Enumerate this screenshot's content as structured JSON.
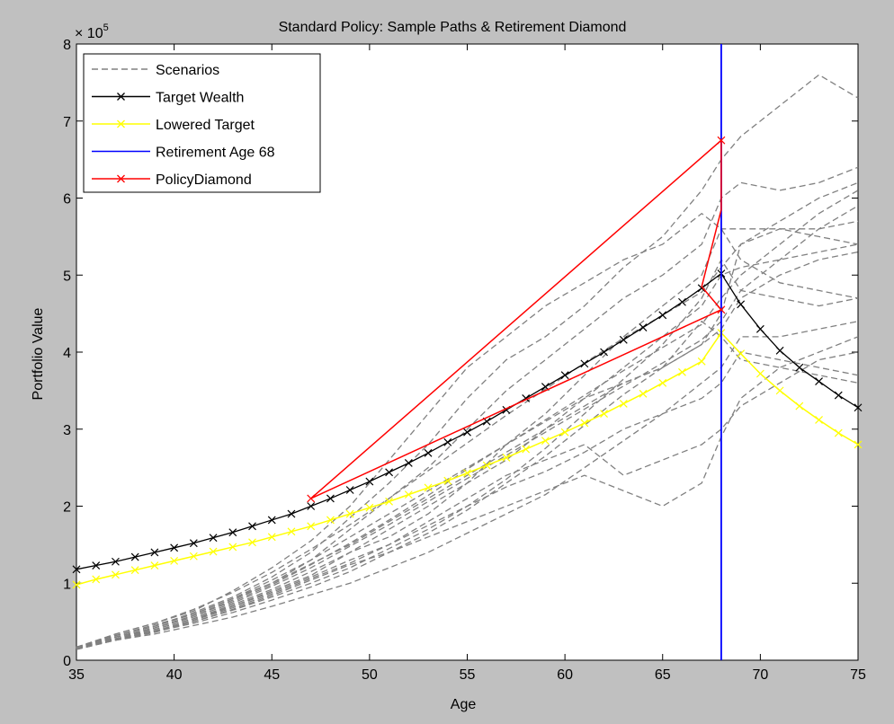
{
  "chart_data": {
    "type": "line",
    "title": "Standard Policy: Sample Paths & Retirement Diamond",
    "xlabel": "Age",
    "ylabel": "Portfolio Value",
    "exponent_label": "× 10",
    "exponent_power": "5",
    "xlim": [
      35,
      75
    ],
    "ylim": [
      0,
      800000
    ],
    "xticks": [
      "35",
      "40",
      "45",
      "50",
      "55",
      "60",
      "65",
      "70",
      "75"
    ],
    "xtick_values": [
      35,
      40,
      45,
      50,
      55,
      60,
      65,
      70,
      75
    ],
    "yticks": [
      "0",
      "1",
      "2",
      "3",
      "4",
      "5",
      "6",
      "7",
      "8"
    ],
    "ytick_values": [
      0,
      100000,
      200000,
      300000,
      400000,
      500000,
      600000,
      700000,
      800000
    ],
    "grid": false,
    "legend_position": "top-left",
    "background_color": "#c0c0c0",
    "plot_area_color": "#ffffff",
    "legend": [
      "Scenarios",
      "Target Wealth",
      "Lowered Target",
      "Retirement Age 68",
      "PolicyDiamond"
    ],
    "colors": {
      "scenarios": "#808080",
      "target": "#000000",
      "lowered": "#ffff00",
      "retirement": "#0000ff",
      "diamond": "#ff0000"
    },
    "retirement_age": 68,
    "target_wealth": {
      "x": [
        35,
        36,
        37,
        38,
        39,
        40,
        41,
        42,
        43,
        44,
        45,
        46,
        47,
        48,
        49,
        50,
        51,
        52,
        53,
        54,
        55,
        56,
        57,
        58,
        59,
        60,
        61,
        62,
        63,
        64,
        65,
        66,
        67,
        68,
        69,
        70,
        71,
        72,
        73,
        74,
        75
      ],
      "y": [
        118000,
        123000,
        128000,
        134000,
        140000,
        146000,
        152000,
        159000,
        166000,
        174000,
        182000,
        190000,
        200000,
        210000,
        221000,
        232000,
        244000,
        256000,
        269000,
        283000,
        296000,
        310000,
        325000,
        340000,
        355000,
        370000,
        385000,
        400000,
        416000,
        432000,
        448000,
        465000,
        483000,
        502000,
        462000,
        430000,
        402000,
        380000,
        362000,
        344000,
        328000
      ]
    },
    "lowered_target": {
      "x": [
        35,
        36,
        37,
        38,
        39,
        40,
        41,
        42,
        43,
        44,
        45,
        46,
        47,
        48,
        49,
        50,
        51,
        52,
        53,
        54,
        55,
        56,
        57,
        58,
        59,
        60,
        61,
        62,
        63,
        64,
        65,
        66,
        67,
        68,
        69,
        70,
        71,
        72,
        73,
        74,
        75
      ],
      "y": [
        98000,
        105000,
        111000,
        117000,
        123000,
        129000,
        135000,
        141000,
        147000,
        153000,
        160000,
        167000,
        174000,
        182000,
        190000,
        198000,
        206000,
        215000,
        224000,
        233000,
        243000,
        253000,
        263000,
        274000,
        285000,
        296000,
        308000,
        320000,
        333000,
        346000,
        360000,
        374000,
        388000,
        425000,
        398000,
        372000,
        350000,
        330000,
        312000,
        295000,
        280000
      ]
    },
    "policy_diamond": {
      "x": [
        47,
        68,
        68,
        67,
        68,
        47
      ],
      "y": [
        210000,
        675000,
        585000,
        485000,
        455000,
        210000
      ]
    },
    "scenarios_x": [
      35,
      37,
      39,
      41,
      43,
      45,
      47,
      49,
      51,
      53,
      55,
      57,
      59,
      61,
      63,
      65,
      67,
      68,
      69,
      71,
      73,
      75
    ],
    "scenarios": [
      [
        16000,
        28000,
        38000,
        52000,
        70000,
        90000,
        110000,
        140000,
        160000,
        190000,
        230000,
        280000,
        320000,
        370000,
        420000,
        460000,
        500000,
        560000,
        560000,
        560000,
        560000,
        570000
      ],
      [
        16000,
        26000,
        36000,
        50000,
        65000,
        82000,
        100000,
        120000,
        145000,
        170000,
        200000,
        235000,
        275000,
        320000,
        365000,
        410000,
        470000,
        520000,
        480000,
        470000,
        460000,
        470000
      ],
      [
        15000,
        30000,
        42000,
        58000,
        78000,
        100000,
        130000,
        170000,
        210000,
        250000,
        300000,
        350000,
        390000,
        430000,
        470000,
        500000,
        540000,
        600000,
        620000,
        610000,
        620000,
        640000
      ],
      [
        17000,
        32000,
        44000,
        62000,
        82000,
        108000,
        140000,
        185000,
        230000,
        280000,
        340000,
        390000,
        420000,
        460000,
        510000,
        550000,
        610000,
        650000,
        680000,
        720000,
        760000,
        730000
      ],
      [
        15000,
        27000,
        37000,
        48000,
        62000,
        78000,
        95000,
        115000,
        140000,
        165000,
        195000,
        230000,
        265000,
        305000,
        345000,
        380000,
        410000,
        450000,
        540000,
        560000,
        550000,
        540000
      ],
      [
        16000,
        34000,
        48000,
        64000,
        90000,
        120000,
        155000,
        200000,
        260000,
        320000,
        380000,
        420000,
        460000,
        490000,
        520000,
        540000,
        580000,
        560000,
        520000,
        490000,
        480000,
        470000
      ],
      [
        14000,
        26000,
        34000,
        45000,
        56000,
        70000,
        85000,
        100000,
        120000,
        140000,
        165000,
        190000,
        215000,
        250000,
        285000,
        320000,
        360000,
        380000,
        420000,
        420000,
        430000,
        440000
      ],
      [
        16000,
        30000,
        40000,
        54000,
        72000,
        92000,
        115000,
        140000,
        170000,
        200000,
        230000,
        260000,
        300000,
        340000,
        380000,
        420000,
        460000,
        500000,
        510000,
        520000,
        530000,
        540000
      ],
      [
        17000,
        32000,
        46000,
        60000,
        80000,
        100000,
        125000,
        150000,
        180000,
        210000,
        240000,
        270000,
        300000,
        330000,
        360000,
        380000,
        440000,
        420000,
        390000,
        380000,
        370000,
        360000
      ],
      [
        15000,
        28000,
        40000,
        54000,
        70000,
        88000,
        108000,
        130000,
        150000,
        175000,
        200000,
        225000,
        245000,
        270000,
        300000,
        320000,
        340000,
        360000,
        400000,
        390000,
        380000,
        370000
      ],
      [
        16000,
        28000,
        38000,
        52000,
        68000,
        86000,
        106000,
        126000,
        150000,
        180000,
        210000,
        240000,
        260000,
        280000,
        240000,
        260000,
        280000,
        300000,
        330000,
        360000,
        390000,
        400000
      ],
      [
        14000,
        26000,
        38000,
        50000,
        66000,
        84000,
        104000,
        124000,
        140000,
        160000,
        180000,
        200000,
        220000,
        240000,
        220000,
        200000,
        230000,
        290000,
        340000,
        380000,
        400000,
        420000
      ],
      [
        16000,
        32000,
        44000,
        60000,
        80000,
        104000,
        130000,
        160000,
        190000,
        220000,
        250000,
        280000,
        310000,
        340000,
        360000,
        380000,
        410000,
        430000,
        470000,
        500000,
        520000,
        530000
      ],
      [
        15000,
        30000,
        42000,
        56000,
        74000,
        96000,
        120000,
        148000,
        176000,
        206000,
        236000,
        266000,
        296000,
        326000,
        356000,
        386000,
        416000,
        440000,
        480000,
        520000,
        560000,
        590000
      ],
      [
        16000,
        30000,
        42000,
        58000,
        76000,
        98000,
        124000,
        152000,
        182000,
        214000,
        248000,
        280000,
        312000,
        344000,
        376000,
        406000,
        436000,
        470000,
        500000,
        540000,
        580000,
        610000
      ],
      [
        17000,
        34000,
        48000,
        66000,
        88000,
        114000,
        144000,
        176000,
        210000,
        246000,
        282000,
        318000,
        352000,
        386000,
        418000,
        448000,
        478000,
        510000,
        540000,
        570000,
        600000,
        620000
      ]
    ]
  }
}
